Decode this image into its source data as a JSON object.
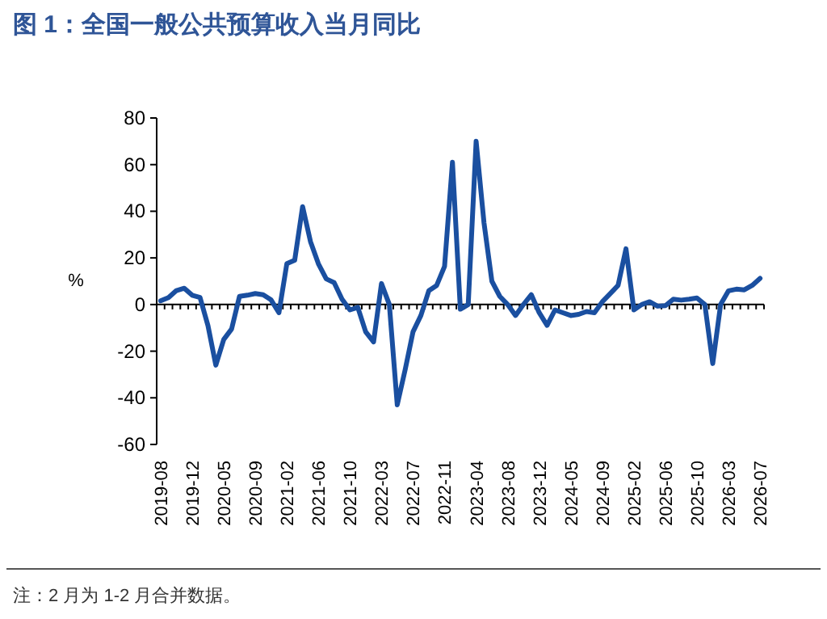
{
  "chart_data": {
    "type": "line",
    "title": "图 1：全国一般公共预算收入当月同比",
    "ylabel": "%",
    "color": "#1a4fa0",
    "ylim": [
      -60,
      80
    ],
    "yticks": [
      -60,
      -40,
      -20,
      0,
      20,
      40,
      60,
      80
    ],
    "marker": "none",
    "line_style": "solid",
    "annotations": [
      "注：2 月为 1-2 月合并数据。"
    ],
    "categories": [
      "2019-08",
      null,
      null,
      null,
      "2019-12",
      null,
      null,
      null,
      "2020-05",
      null,
      null,
      null,
      "2020-09",
      null,
      null,
      null,
      "2021-02",
      null,
      null,
      null,
      "2021-06",
      null,
      null,
      null,
      "2021-10",
      null,
      null,
      null,
      "2022-03",
      null,
      null,
      null,
      "2022-07",
      null,
      null,
      null,
      "2022-11",
      null,
      null,
      null,
      "2023-04",
      null,
      null,
      null,
      "2023-08",
      null,
      null,
      null,
      "2023-12",
      null,
      null,
      null,
      "2024-05",
      null,
      null,
      null,
      "2024-09",
      null,
      null,
      null,
      "2025-02",
      null,
      null,
      null,
      "2025-06",
      null,
      null,
      null,
      "2025-10",
      null,
      null,
      null,
      "2026-03",
      null,
      null,
      null,
      "2026-07"
    ],
    "values": [
      1.6,
      3,
      6,
      7,
      4,
      3,
      -9,
      -26,
      -15,
      -10.5,
      3.5,
      4,
      4.7,
      4.2,
      2,
      -3.5,
      17.5,
      19,
      42,
      27,
      17.5,
      11,
      9.4,
      2.3,
      -2.3,
      -1.2,
      -11.7,
      -16,
      9,
      0,
      -43,
      -28,
      -11.7,
      -4.7,
      5.9,
      8.2,
      16.4,
      61,
      -2,
      0,
      70,
      35,
      10,
      3.5,
      0,
      -4.7,
      0,
      4.2,
      -3.5,
      -8.9,
      -2.3,
      -3.5,
      -4.7,
      -4.2,
      -3,
      -3.5,
      1.2,
      4.7,
      8.2,
      23.9,
      -2.3,
      0,
      1.2,
      -0.7,
      -0.5,
      2.3,
      1.9,
      2.3,
      2.8,
      0,
      -25.3,
      0,
      5.9,
      6.6,
      6.3,
      8.2,
      11.2
    ]
  }
}
